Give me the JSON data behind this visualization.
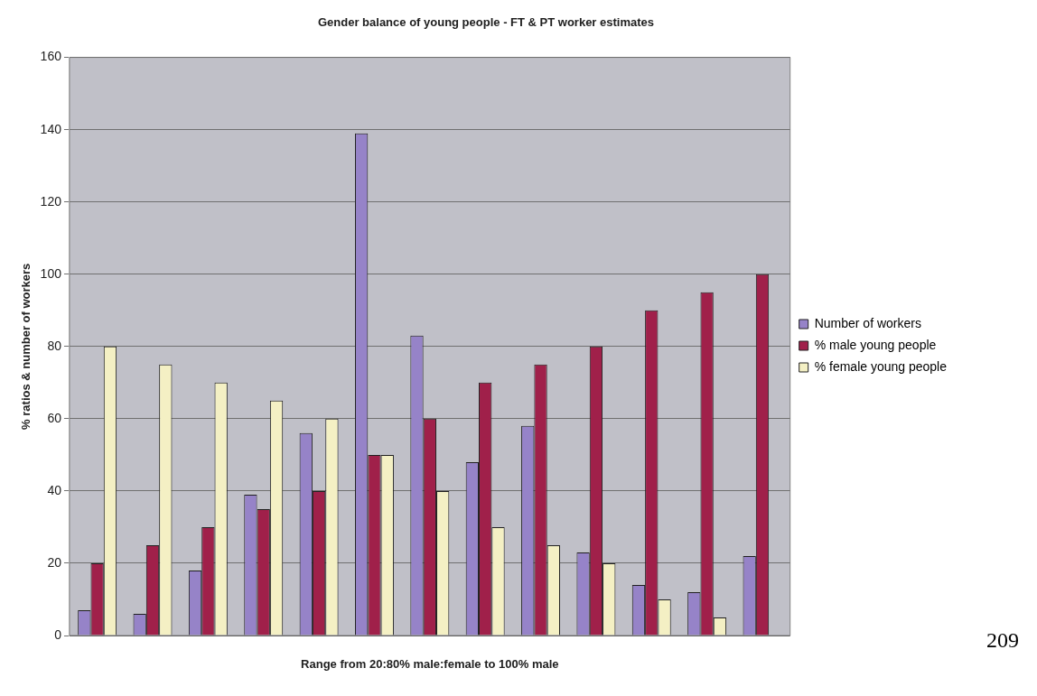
{
  "chart_data": {
    "type": "bar",
    "title": "Gender balance of young people - FT & PT worker estimates",
    "xlabel": "Range from 20:80% male:female to 100% male",
    "ylabel": "% ratios & number of workers",
    "categories": [
      null,
      null,
      null,
      null,
      null,
      null,
      null,
      null,
      null,
      null,
      null,
      null,
      null
    ],
    "series": [
      {
        "name": "Number of workers",
        "color": "#9683c8",
        "values": [
          7,
          6,
          18,
          39,
          56,
          139,
          83,
          48,
          58,
          23,
          14,
          12,
          22
        ]
      },
      {
        "name": "% male young people",
        "color": "#a0204a",
        "values": [
          20,
          25,
          30,
          35,
          40,
          50,
          60,
          70,
          75,
          80,
          90,
          95,
          100
        ]
      },
      {
        "name": "% female young people",
        "color": "#f4f0c4",
        "values": [
          80,
          75,
          70,
          65,
          60,
          50,
          40,
          30,
          25,
          20,
          10,
          5,
          null
        ]
      }
    ],
    "ylim": [
      0,
      160
    ],
    "yticks": [
      0,
      20,
      40,
      60,
      80,
      100,
      120,
      140,
      160
    ],
    "grid": "y",
    "legend": "right",
    "annotations": [
      "209"
    ]
  }
}
